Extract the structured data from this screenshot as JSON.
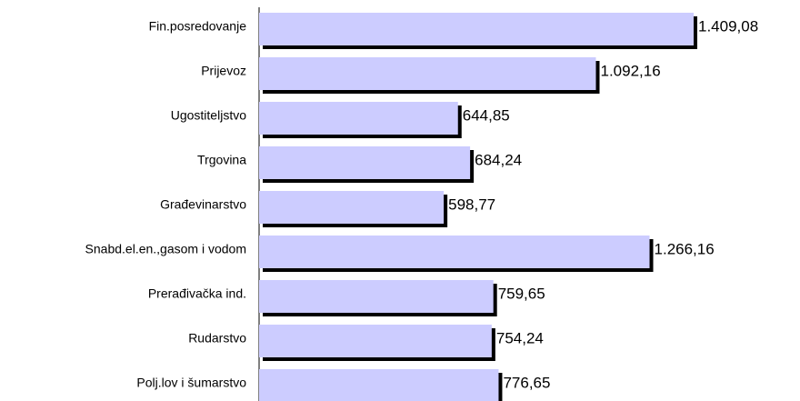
{
  "chart_data": {
    "type": "bar",
    "orientation": "horizontal",
    "categories": [
      "Fin.posredovanje",
      "Prijevoz",
      "Ugostiteljstvo",
      "Trgovina",
      "Građevinarstvo",
      "Snabd.el.en.,gasom i vodom",
      "Prerađivačka ind.",
      "Rudarstvo",
      "Polj.lov i šumarstvo"
    ],
    "values": [
      1409.08,
      1092.16,
      644.85,
      684.24,
      598.77,
      1266.16,
      759.65,
      754.24,
      776.65
    ],
    "value_labels": [
      "1.409,08",
      "1.092,16",
      "644,85",
      "684,24",
      "598,77",
      "1.266,16",
      "759,65",
      "754,24",
      "776,65"
    ],
    "color": "#ccccff",
    "shadow_color": "#000000"
  }
}
